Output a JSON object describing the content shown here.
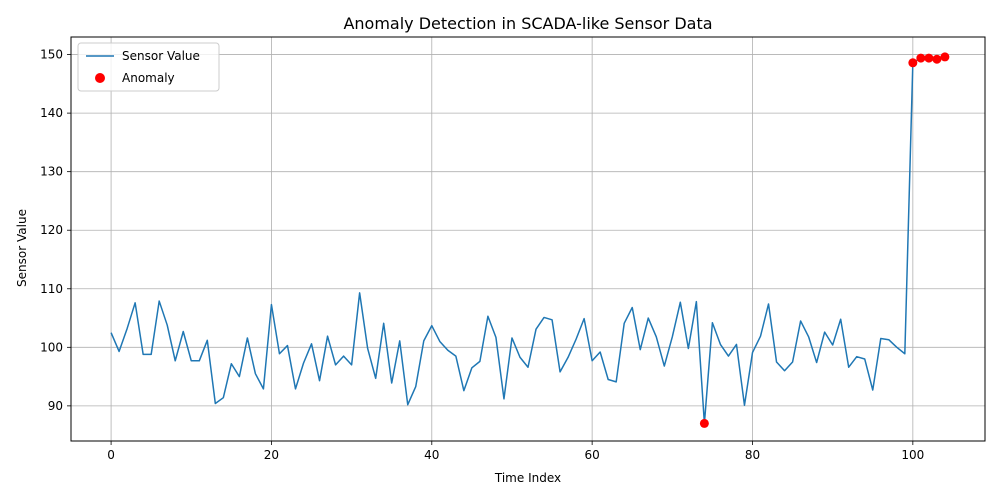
{
  "chart_data": {
    "type": "line",
    "title": "Anomaly Detection in SCADA-like Sensor Data",
    "xlabel": "Time Index",
    "ylabel": "Sensor Value",
    "xlim": [
      -5,
      109
    ],
    "ylim": [
      84,
      153
    ],
    "xticks": [
      0,
      20,
      40,
      60,
      80,
      100
    ],
    "yticks": [
      90,
      100,
      110,
      120,
      130,
      140,
      150
    ],
    "grid": true,
    "legend_position": "top-left",
    "colors": {
      "line": "#1f77b4",
      "anomaly": "#ff0000"
    },
    "series": [
      {
        "name": "Sensor Value",
        "type": "line",
        "x": [
          0,
          1,
          2,
          3,
          4,
          5,
          6,
          7,
          8,
          9,
          10,
          11,
          12,
          13,
          14,
          15,
          16,
          17,
          18,
          19,
          20,
          21,
          22,
          23,
          24,
          25,
          26,
          27,
          28,
          29,
          30,
          31,
          32,
          33,
          34,
          35,
          36,
          37,
          38,
          39,
          40,
          41,
          42,
          43,
          44,
          45,
          46,
          47,
          48,
          49,
          50,
          51,
          52,
          53,
          54,
          55,
          56,
          57,
          58,
          59,
          60,
          61,
          62,
          63,
          64,
          65,
          66,
          67,
          68,
          69,
          70,
          71,
          72,
          73,
          74,
          75,
          76,
          77,
          78,
          79,
          80,
          81,
          82,
          83,
          84,
          85,
          86,
          87,
          88,
          89,
          90,
          91,
          92,
          93,
          94,
          95,
          96,
          97,
          98,
          99,
          100,
          101,
          102,
          103,
          104
        ],
        "values": [
          102.5,
          99.3,
          103.2,
          107.6,
          98.8,
          98.8,
          107.9,
          103.8,
          97.7,
          102.7,
          97.7,
          97.7,
          101.2,
          90.4,
          91.4,
          97.2,
          95.0,
          101.6,
          95.5,
          92.9,
          107.3,
          98.9,
          100.3,
          92.9,
          97.3,
          100.6,
          94.3,
          101.9,
          97.0,
          98.5,
          97.0,
          109.3,
          99.8,
          94.7,
          104.1,
          93.9,
          101.1,
          90.2,
          93.3,
          101.1,
          103.7,
          101.0,
          99.5,
          98.5,
          92.6,
          96.5,
          97.6,
          105.3,
          101.7,
          91.2,
          101.6,
          98.3,
          96.6,
          103.1,
          105.1,
          104.7,
          95.8,
          98.3,
          101.4,
          104.9,
          97.7,
          99.2,
          94.5,
          94.1,
          104.1,
          106.8,
          99.6,
          105.0,
          101.8,
          96.8,
          101.8,
          107.7,
          99.8,
          107.8,
          87.0,
          104.2,
          100.5,
          98.5,
          100.5,
          90.1,
          99.1,
          101.9,
          107.4,
          97.5,
          96.0,
          97.5,
          104.5,
          101.8,
          97.4,
          102.6,
          100.4,
          104.8,
          96.6,
          98.4,
          98.0,
          92.7,
          101.5,
          101.3,
          100.0,
          98.9,
          148.6,
          149.4,
          149.4,
          149.2,
          149.6
        ]
      },
      {
        "name": "Anomaly",
        "type": "scatter",
        "x": [
          74,
          100,
          101,
          102,
          103,
          104
        ],
        "values": [
          87.0,
          148.6,
          149.4,
          149.4,
          149.2,
          149.6
        ]
      }
    ]
  }
}
